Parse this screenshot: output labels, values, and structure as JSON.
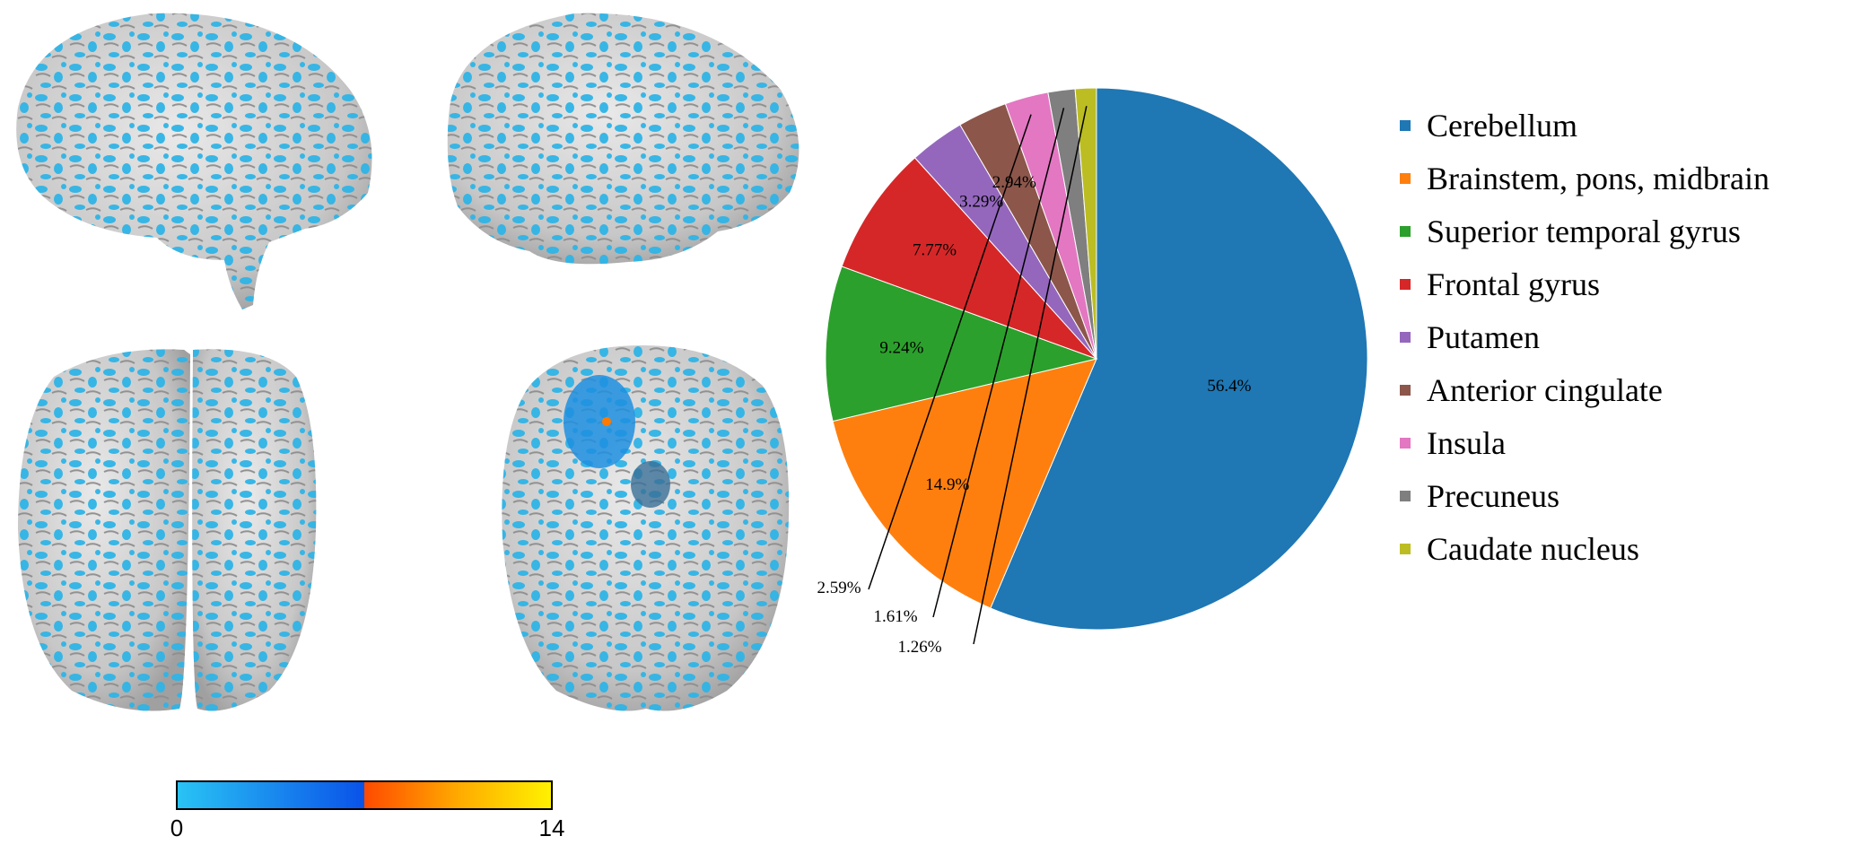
{
  "chart_data": {
    "type": "pie",
    "title": "",
    "slices": [
      {
        "label": "Cerebellum",
        "value": 56.4,
        "display": "56.4%",
        "color": "#1f77b4"
      },
      {
        "label": "Brainstem, pons, midbrain",
        "value": 14.9,
        "display": "14.9%",
        "color": "#ff7f0e"
      },
      {
        "label": "Superior temporal gyrus",
        "value": 9.24,
        "display": "9.24%",
        "color": "#2ca02c"
      },
      {
        "label": "Frontal gyrus",
        "value": 7.77,
        "display": "7.77%",
        "color": "#d62728"
      },
      {
        "label": "Putamen",
        "value": 3.29,
        "display": "3.29%",
        "color": "#9467bd"
      },
      {
        "label": "Anterior cingulate",
        "value": 2.94,
        "display": "2.94%",
        "color": "#8c564b"
      },
      {
        "label": "Insula",
        "value": 2.59,
        "display": "2.59%",
        "color": "#e377c2"
      },
      {
        "label": "Precuneus",
        "value": 1.61,
        "display": "1.61%",
        "color": "#7f7f7f"
      },
      {
        "label": "Caudate nucleus",
        "value": 1.26,
        "display": "1.26%",
        "color": "#bcbd22"
      }
    ],
    "legend_position": "right"
  },
  "colorbar": {
    "min_label": "0",
    "max_label": "14",
    "colors": [
      "#29c4f5",
      "#0a52e8",
      "#ff4a00",
      "#ffaa00",
      "#fff200"
    ]
  }
}
